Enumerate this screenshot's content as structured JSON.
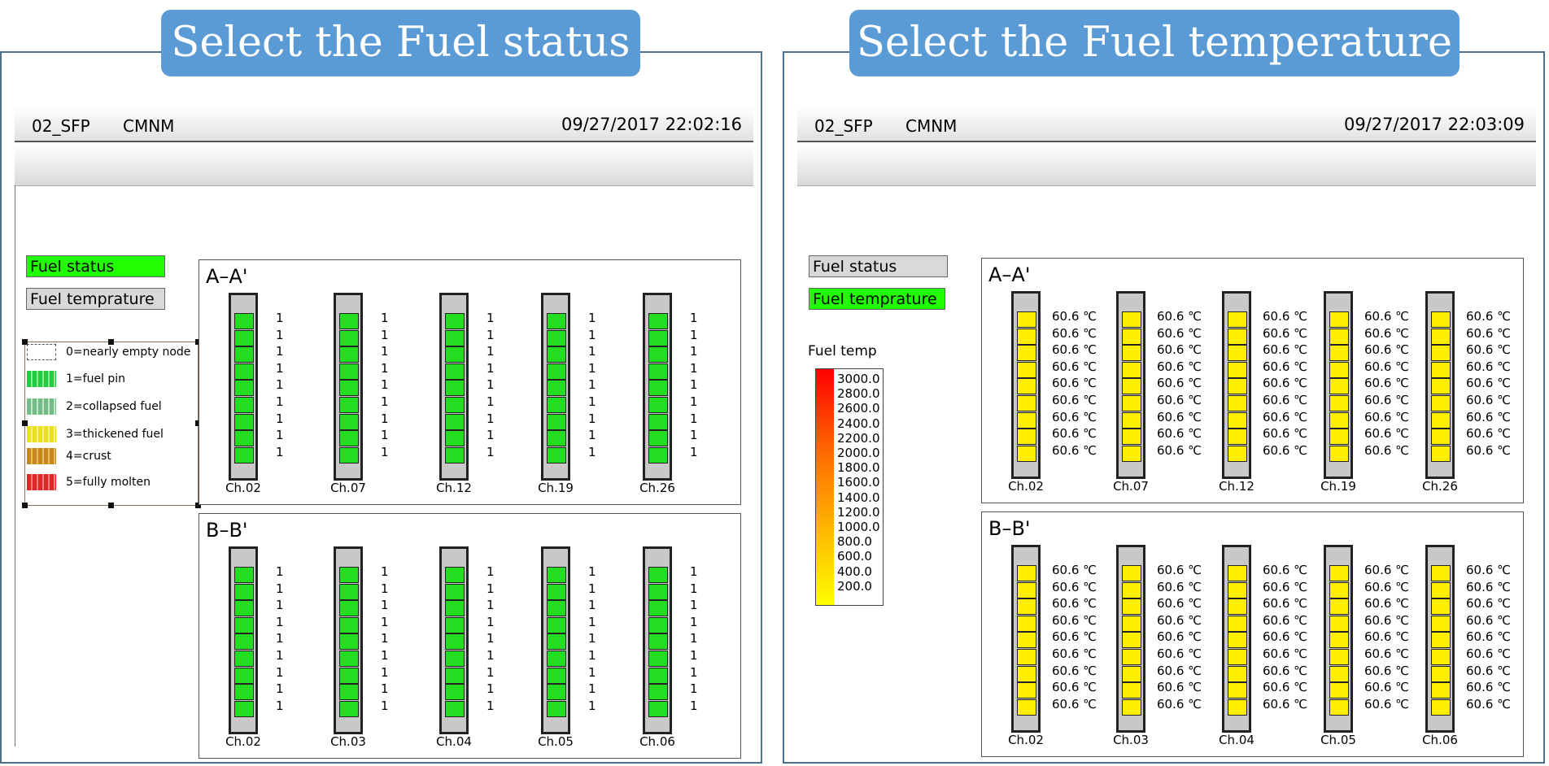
{
  "left_panel": {
    "banner": "Select the Fuel status",
    "system_name": "02_SFP",
    "mode": "CMNM",
    "datetime": "09/27/2017 22:02:16",
    "fuel_status_button": "Fuel status",
    "fuel_temp_button": "Fuel temprature",
    "active_mode": "fuel_status",
    "legend": [
      {
        "label": "0=nearly empty node",
        "color": "#ffffff"
      },
      {
        "label": "1=fuel pin",
        "color": "#22cc44"
      },
      {
        "label": "2=collapsed fuel",
        "color": "#88cc99"
      },
      {
        "label": "3=thickened fuel",
        "color": "#e8e020"
      },
      {
        "label": "4=crust",
        "color": "#d08a20"
      },
      {
        "label": "5=fully molten",
        "color": "#e03030"
      }
    ],
    "sections": [
      {
        "title": "A–A'",
        "channels": [
          "Ch.02",
          "Ch.07",
          "Ch.12",
          "Ch.19",
          "Ch.26"
        ],
        "node_value": "1"
      },
      {
        "title": "B–B'",
        "channels": [
          "Ch.02",
          "Ch.03",
          "Ch.04",
          "Ch.05",
          "Ch.06"
        ],
        "node_value": "1"
      }
    ]
  },
  "right_panel": {
    "banner": "Select the Fuel temperature",
    "system_name": "02_SFP",
    "mode": "CMNM",
    "datetime": "09/27/2017 22:03:09",
    "fuel_status_button": "Fuel status",
    "fuel_temp_button": "Fuel temprature",
    "active_mode": "fuel_temperature",
    "temp_scale_title": "Fuel temp",
    "temp_scale": [
      "3000.0",
      "2800.0",
      "2600.0",
      "2400.0",
      "2200.0",
      "2000.0",
      "1800.0",
      "1600.0",
      "1400.0",
      "1200.0",
      "1000.0",
      "800.0",
      "600.0",
      "400.0",
      "200.0"
    ],
    "sections": [
      {
        "title": "A–A'",
        "channels": [
          "Ch.02",
          "Ch.07",
          "Ch.12",
          "Ch.19",
          "Ch.26"
        ],
        "node_value": "60.6 ℃"
      },
      {
        "title": "B–B'",
        "channels": [
          "Ch.02",
          "Ch.03",
          "Ch.04",
          "Ch.05",
          "Ch.06"
        ],
        "node_value": "60.6 ℃"
      }
    ]
  },
  "colors": {
    "banner": "#5b9bd5",
    "active_button": "#22ff00",
    "inactive_button": "#d9d9d9",
    "fuel_pin": "#22dd22",
    "temp_node": "#ffee00"
  },
  "nodes_per_channel": 9
}
